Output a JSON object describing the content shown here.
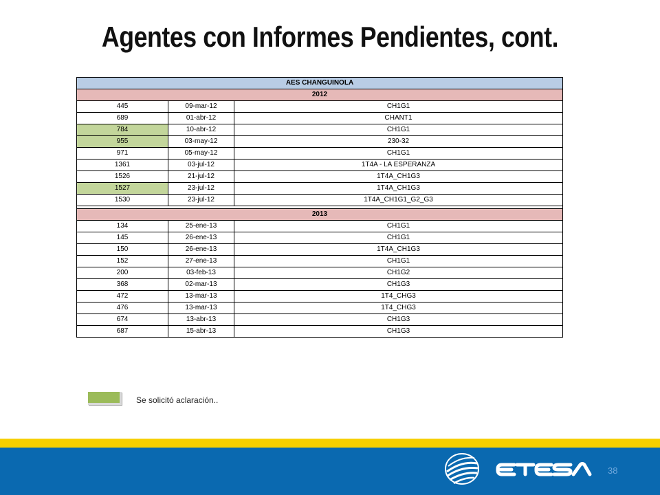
{
  "slide": {
    "title": "Agentes con Informes Pendientes, cont.",
    "page_number": "38"
  },
  "table": {
    "header": "AES CHANGUINOLA",
    "sections": [
      {
        "year": "2012",
        "rows": [
          {
            "num": "445",
            "date": "09-mar-12",
            "unit": "CH1G1",
            "highlight": false
          },
          {
            "num": "689",
            "date": "01-abr-12",
            "unit": "CHANT1",
            "highlight": false
          },
          {
            "num": "784",
            "date": "10-abr-12",
            "unit": "CH1G1",
            "highlight": true
          },
          {
            "num": "955",
            "date": "03-may-12",
            "unit": "230-32",
            "highlight": true
          },
          {
            "num": "971",
            "date": "05-may-12",
            "unit": "CH1G1",
            "highlight": false
          },
          {
            "num": "1361",
            "date": "03-jul-12",
            "unit": "1T4A - LA ESPERANZA",
            "highlight": false
          },
          {
            "num": "1526",
            "date": "21-jul-12",
            "unit": "1T4A_CH1G3",
            "highlight": false
          },
          {
            "num": "1527",
            "date": "23-jul-12",
            "unit": "1T4A_CH1G3",
            "highlight": true
          },
          {
            "num": "1530",
            "date": "23-jul-12",
            "unit": "1T4A_CH1G1_G2_G3",
            "highlight": false
          }
        ]
      },
      {
        "year": "2013",
        "rows": [
          {
            "num": "134",
            "date": "25-ene-13",
            "unit": "CH1G1",
            "highlight": false
          },
          {
            "num": "145",
            "date": "26-ene-13",
            "unit": "CH1G1",
            "highlight": false
          },
          {
            "num": "150",
            "date": "26-ene-13",
            "unit": "1T4A_CH1G3",
            "highlight": false
          },
          {
            "num": "152",
            "date": "27-ene-13",
            "unit": "CH1G1",
            "highlight": false
          },
          {
            "num": "200",
            "date": "03-feb-13",
            "unit": "CH1G2",
            "highlight": false
          },
          {
            "num": "368",
            "date": "02-mar-13",
            "unit": "CH1G3",
            "highlight": false
          },
          {
            "num": "472",
            "date": "13-mar-13",
            "unit": "1T4_CHG3",
            "highlight": false
          },
          {
            "num": "476",
            "date": "13-mar-13",
            "unit": "1T4_CHG3",
            "highlight": false
          },
          {
            "num": "674",
            "date": "13-abr-13",
            "unit": "CH1G3",
            "highlight": false
          },
          {
            "num": "687",
            "date": "15-abr-13",
            "unit": "CH1G3",
            "highlight": false
          }
        ]
      }
    ]
  },
  "legend": {
    "text": "Se solicitó aclaración..",
    "swatch_color": "#9bbb59"
  },
  "colors": {
    "header_bg": "#b9cde5",
    "year_bg": "#e6b9b8",
    "highlight_bg": "#c3d69b",
    "band_yellow": "#f6cf00",
    "band_blue": "#0a69b0"
  },
  "logo": {
    "icon": "etesa-globe-logo",
    "alt_icon": "etesa-wordmark-logo"
  }
}
